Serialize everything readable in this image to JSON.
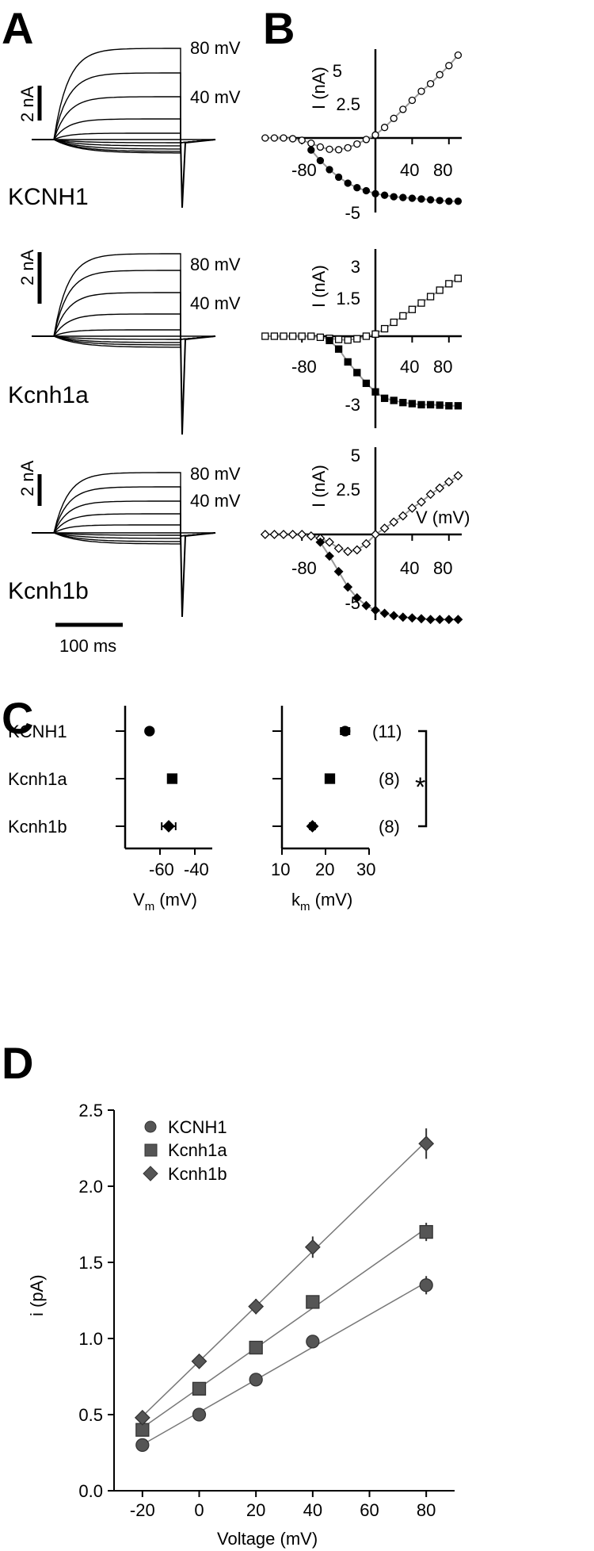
{
  "panel_labels": [
    "A",
    "B",
    "C",
    "D"
  ],
  "panel_a": {
    "traces": [
      {
        "name": "KCNH1",
        "scale_label": "2 nA",
        "voltage_labels": [
          "80 mV",
          "40 mV"
        ]
      },
      {
        "name": "Kcnh1a",
        "scale_label": "2 nA",
        "voltage_labels": [
          "80 mV",
          "40 mV"
        ]
      },
      {
        "name": "Kcnh1b",
        "scale_label": "2 nA",
        "voltage_labels": [
          "80 mV",
          "40 mV"
        ]
      }
    ],
    "time_scale_label": "100 ms"
  },
  "chart_data": [
    {
      "type": "scatter",
      "panel": "B",
      "ylabel": "I (nA)",
      "xlabel": "",
      "xticks": [
        "-80",
        "40",
        "80"
      ],
      "yticks": [
        "5",
        "2.5",
        "-5"
      ],
      "xlim": [
        -120,
        100
      ],
      "ylim": [
        -5.5,
        6
      ],
      "series": [
        {
          "marker": "open-circle",
          "x": [
            -120,
            -110,
            -100,
            -90,
            -80,
            -70,
            -60,
            -50,
            -40,
            -30,
            -20,
            -10,
            0,
            10,
            20,
            30,
            40,
            50,
            60,
            70,
            80,
            90
          ],
          "y": [
            0,
            0,
            0,
            -0.05,
            -0.15,
            -0.35,
            -0.6,
            -0.75,
            -0.78,
            -0.65,
            -0.4,
            -0.1,
            0.2,
            0.7,
            1.3,
            1.9,
            2.5,
            3.1,
            3.6,
            4.2,
            4.8,
            5.5
          ]
        },
        {
          "marker": "filled-circle",
          "x": [
            -70,
            -60,
            -50,
            -40,
            -30,
            -20,
            -10,
            0,
            10,
            20,
            30,
            40,
            50,
            60,
            70,
            80,
            90
          ],
          "y": [
            -0.8,
            -1.5,
            -2.1,
            -2.6,
            -3.0,
            -3.3,
            -3.5,
            -3.7,
            -3.8,
            -3.9,
            -3.95,
            -4.0,
            -4.05,
            -4.1,
            -4.15,
            -4.2,
            -4.2
          ]
        }
      ]
    },
    {
      "type": "scatter",
      "panel": "B",
      "ylabel": "I (nA)",
      "xlabel": "",
      "xticks": [
        "-80",
        "40",
        "80"
      ],
      "yticks": [
        "3",
        "1.5",
        "-3"
      ],
      "xlim": [
        -120,
        100
      ],
      "ylim": [
        -3.5,
        3.5
      ],
      "series": [
        {
          "marker": "open-square",
          "x": [
            -120,
            -110,
            -100,
            -90,
            -80,
            -70,
            -60,
            -50,
            -40,
            -30,
            -20,
            -10,
            0,
            10,
            20,
            30,
            40,
            50,
            60,
            70,
            80,
            90
          ],
          "y": [
            0,
            0,
            0,
            0,
            0,
            0,
            -0.05,
            -0.1,
            -0.15,
            -0.18,
            -0.12,
            0,
            0.1,
            0.35,
            0.65,
            0.95,
            1.25,
            1.55,
            1.85,
            2.15,
            2.45,
            2.7
          ]
        },
        {
          "marker": "filled-square",
          "x": [
            -50,
            -40,
            -30,
            -20,
            -10,
            0,
            10,
            20,
            30,
            40,
            50,
            60,
            70,
            80,
            90
          ],
          "y": [
            -0.2,
            -0.6,
            -1.2,
            -1.7,
            -2.2,
            -2.6,
            -2.9,
            -3.0,
            -3.1,
            -3.15,
            -3.2,
            -3.2,
            -3.22,
            -3.25,
            -3.25
          ]
        }
      ]
    },
    {
      "type": "scatter",
      "panel": "B",
      "ylabel": "I (nA)",
      "xlabel": "V (mV)",
      "xticks": [
        "-80",
        "40",
        "80"
      ],
      "yticks": [
        "5",
        "2.5",
        "-5"
      ],
      "xlim": [
        -120,
        100
      ],
      "ylim": [
        -5.5,
        5.5
      ],
      "series": [
        {
          "marker": "open-diamond",
          "x": [
            -120,
            -110,
            -100,
            -90,
            -80,
            -70,
            -60,
            -50,
            -40,
            -30,
            -20,
            -10,
            0,
            10,
            20,
            30,
            40,
            50,
            60,
            70,
            80,
            90
          ],
          "y": [
            0,
            0,
            0,
            0,
            0,
            -0.1,
            -0.25,
            -0.5,
            -0.9,
            -1.1,
            -1.0,
            -0.6,
            0,
            0.4,
            0.8,
            1.2,
            1.7,
            2.1,
            2.6,
            3.0,
            3.4,
            3.8
          ]
        },
        {
          "marker": "filled-diamond",
          "x": [
            -60,
            -50,
            -40,
            -30,
            -20,
            -10,
            0,
            10,
            20,
            30,
            40,
            50,
            60,
            70,
            80,
            90
          ],
          "y": [
            -0.5,
            -1.4,
            -2.4,
            -3.4,
            -4.1,
            -4.6,
            -4.9,
            -5.1,
            -5.25,
            -5.35,
            -5.4,
            -5.45,
            -5.5,
            -5.5,
            -5.5,
            -5.5
          ]
        }
      ]
    },
    {
      "type": "scatter",
      "panel": "C",
      "xlabel_main": "V",
      "xlabel_sub": "m",
      "xlabel_unit": " (mV)",
      "categories": [
        "KCNH1",
        "Kcnh1a",
        "Kcnh1b"
      ],
      "xticks": [
        "-60",
        "-40"
      ],
      "xlim": [
        -80,
        -30
      ],
      "values": [
        -66,
        -53,
        -55
      ],
      "errors": [
        1.5,
        1.5,
        4
      ],
      "markers": [
        "circle",
        "square",
        "diamond"
      ]
    },
    {
      "type": "scatter",
      "panel": "C",
      "xlabel_main": "k",
      "xlabel_sub": "m",
      "xlabel_unit": " (mV)",
      "categories": [
        "KCNH1",
        "Kcnh1a",
        "Kcnh1b"
      ],
      "xticks": [
        "10",
        "20",
        "30"
      ],
      "xlim": [
        10,
        30
      ],
      "values": [
        24.5,
        21,
        17
      ],
      "errors": [
        1,
        0.5,
        0.6
      ],
      "markers": [
        "circle",
        "square",
        "diamond"
      ],
      "n_labels": [
        "(11)",
        "(8)",
        "(8)"
      ],
      "significance": "*"
    },
    {
      "type": "line",
      "panel": "D",
      "xlabel": "Voltage (mV)",
      "ylabel": "i (pA)",
      "xlim": [
        -30,
        90
      ],
      "ylim": [
        0,
        2.5
      ],
      "xticks": [
        "-20",
        "0",
        "20",
        "40",
        "60",
        "80"
      ],
      "yticks": [
        "0.0",
        "0.5",
        "1.0",
        "1.5",
        "2.0",
        "2.5"
      ],
      "legend_position": "top-left",
      "series": [
        {
          "name": "KCNH1",
          "marker": "circle",
          "x": [
            -20,
            0,
            20,
            40,
            80
          ],
          "y": [
            0.3,
            0.5,
            0.73,
            0.98,
            1.35
          ],
          "err": [
            0.03,
            0.03,
            0.03,
            0.03,
            0.06
          ]
        },
        {
          "name": "Kcnh1a",
          "marker": "square",
          "x": [
            -20,
            0,
            20,
            40,
            80
          ],
          "y": [
            0.4,
            0.67,
            0.94,
            1.24,
            1.7
          ],
          "err": [
            0.03,
            0.03,
            0.04,
            0.04,
            0.06
          ]
        },
        {
          "name": "Kcnh1b",
          "marker": "diamond",
          "x": [
            -20,
            0,
            20,
            40,
            80
          ],
          "y": [
            0.48,
            0.85,
            1.21,
            1.6,
            2.28
          ],
          "err": [
            0.03,
            0.03,
            0.05,
            0.07,
            0.1
          ]
        }
      ]
    }
  ]
}
